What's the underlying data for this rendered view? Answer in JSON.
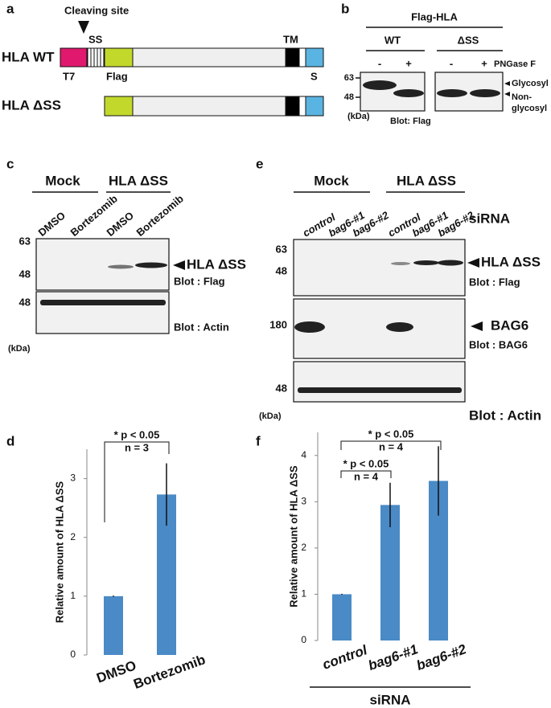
{
  "a": {
    "label": "a",
    "cleaving_site": "Cleaving site",
    "ss": "SS",
    "tm": "TM",
    "wt": "HLA WT",
    "t7": "T7",
    "flag": "Flag",
    "s": "S",
    "dss": "HLA ΔSS"
  },
  "b": {
    "label": "b",
    "title": "Flag-HLA",
    "wt": "WT",
    "dss": "ΔSS",
    "lanes": [
      "-",
      "+",
      "-",
      "+"
    ],
    "treatment": "PNGase F",
    "markers": [
      "63",
      "48"
    ],
    "unit": "(kDa)",
    "blot": "Blot: Flag",
    "glycosyl": "Glycosyl",
    "non_glycosyl": [
      "Non-",
      "glycosyl"
    ]
  },
  "c": {
    "label": "c",
    "groups": [
      "Mock",
      "HLA ΔSS"
    ],
    "lanes": [
      "DMSO",
      "Bortezomib",
      "DMSO",
      "Bortezomib"
    ],
    "flag_markers": [
      "63",
      "48"
    ],
    "band": "HLA ΔSS",
    "blot_flag": "Blot : Flag",
    "actin_marker": "48",
    "blot_actin": "Blot : Actin",
    "unit": "(kDa)"
  },
  "e": {
    "label": "e",
    "groups": [
      "Mock",
      "HLA ΔSS"
    ],
    "lanes": [
      "control",
      "bag6-#1",
      "bag6-#2",
      "control",
      "bag6-#1",
      "bag6-#2"
    ],
    "sirna": "siRNA",
    "flag_markers": [
      "63",
      "48"
    ],
    "band": "HLA ΔSS",
    "blot_flag": "Blot : Flag",
    "bag6_marker": "180",
    "bag6_band": "BAG6",
    "blot_bag6": "Blot : BAG6",
    "actin_marker": "48",
    "unit": "(kDa)",
    "blot_actin": "Blot : Actin"
  },
  "chart_data": [
    {
      "type": "bar",
      "panel_label": "d",
      "y_label": "Relative amount of HLA ΔSS",
      "categories": [
        "DMSO",
        "Bortezomib"
      ],
      "values": [
        1,
        2.73
      ],
      "errors": [
        0.01,
        0.53
      ],
      "color": "#4a8ac6",
      "ylim": [
        0,
        3.5
      ],
      "yticks": [
        0,
        1,
        2,
        3
      ],
      "significance": [
        {
          "p": "* p < 0.05",
          "n": "n = 3"
        }
      ]
    },
    {
      "type": "bar",
      "panel_label": "f",
      "y_label": "Relative amount of HLA ΔSS",
      "categories": [
        "control",
        "bag6-#1",
        "bag6-#2"
      ],
      "values": [
        1,
        2.93,
        3.45
      ],
      "errors": [
        0.01,
        0.48,
        0.75
      ],
      "color": "#4a8ac6",
      "ylim": [
        0,
        4.5
      ],
      "yticks": [
        0,
        1,
        2,
        3,
        4
      ],
      "x_title": "siRNA",
      "significance": [
        {
          "p": "* p < 0.05",
          "n": "n = 4"
        },
        {
          "p": "* p < 0.05",
          "n": "n = 4"
        }
      ]
    }
  ]
}
